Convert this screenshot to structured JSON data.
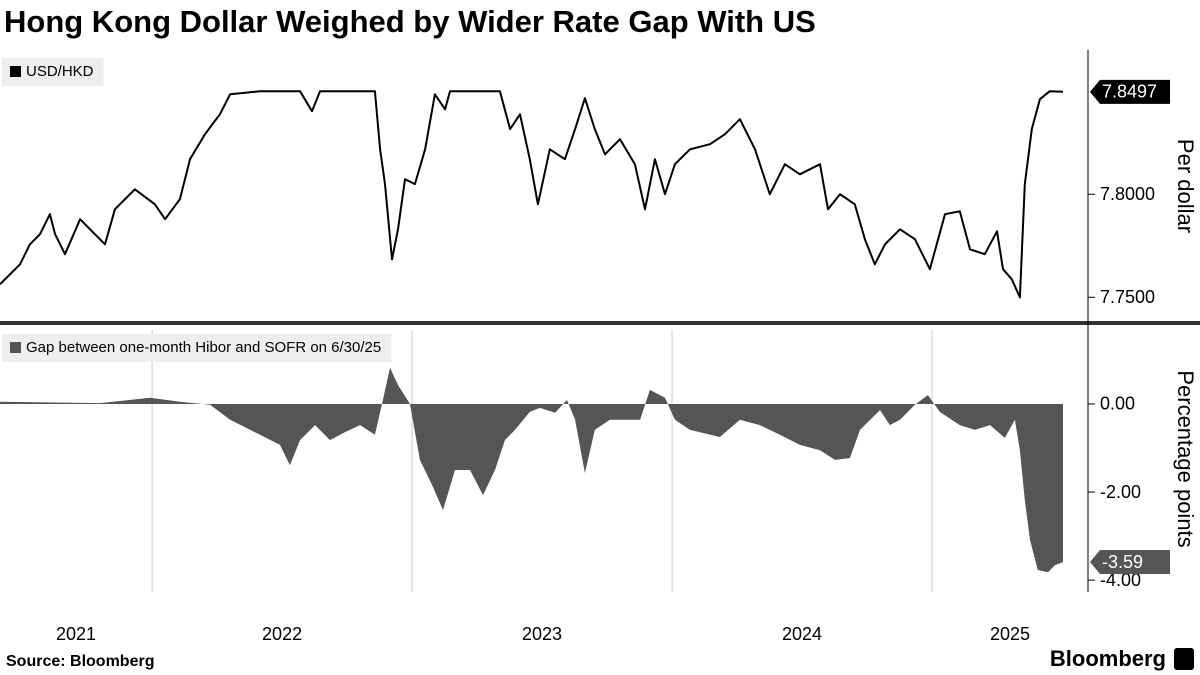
{
  "title": "Hong Kong Dollar Weighed by Wider Rate Gap With US",
  "source": "Source: Bloomberg",
  "brand": "Bloomberg",
  "chart_data": [
    {
      "type": "line",
      "ylabel": "Per dollar",
      "xlim": [
        2021.415,
        2025.6
      ],
      "ylim": [
        7.738,
        7.87
      ],
      "yticks": [
        {
          "value": 7.75,
          "label": "7.7500"
        },
        {
          "value": 7.8,
          "label": "7.8000"
        }
      ],
      "series": [
        {
          "name": "USD/HKD",
          "color": "#000000",
          "x": [
            2021.415,
            2021.492,
            2021.53,
            2021.569,
            2021.607,
            2021.627,
            2021.665,
            2021.723,
            2021.78,
            2021.819,
            2021.857,
            2021.934,
            2022.011,
            2022.05,
            2022.107,
            2022.146,
            2022.203,
            2022.261,
            2022.3,
            2022.415,
            2022.569,
            2022.615,
            2022.646,
            2022.857,
            2022.877,
            2022.896,
            2022.923,
            2022.946,
            2022.973,
            2023.011,
            2023.05,
            2023.088,
            2023.127,
            2023.146,
            2023.338,
            2023.377,
            2023.415,
            2023.453,
            2023.484,
            2023.53,
            2023.588,
            2023.627,
            2023.665,
            2023.703,
            2023.742,
            2023.8,
            2023.857,
            2023.896,
            2023.934,
            2023.973,
            2024.011,
            2024.069,
            2024.146,
            2024.203,
            2024.261,
            2024.319,
            2024.376,
            2024.434,
            2024.492,
            2024.569,
            2024.6,
            2024.646,
            2024.703,
            2024.742,
            2024.78,
            2024.819,
            2024.877,
            2024.934,
            2024.992,
            2025.05,
            2025.107,
            2025.146,
            2025.203,
            2025.25,
            2025.273,
            2025.307,
            2025.338,
            2025.357,
            2025.384,
            2025.415,
            2025.453,
            2025.504
          ],
          "values": [
            7.7563,
            7.766,
            7.7757,
            7.7806,
            7.7903,
            7.7806,
            7.7709,
            7.7879,
            7.7806,
            7.7757,
            7.7927,
            7.8024,
            7.7951,
            7.7879,
            7.7976,
            7.817,
            7.8291,
            7.8388,
            7.8485,
            7.85,
            7.85,
            7.8403,
            7.85,
            7.85,
            7.8218,
            7.8049,
            7.7684,
            7.783,
            7.8073,
            7.8049,
            7.8218,
            7.8485,
            7.8412,
            7.85,
            7.85,
            7.8316,
            7.8388,
            7.817,
            7.7951,
            7.8218,
            7.817,
            7.8316,
            7.8466,
            7.8316,
            7.8194,
            7.8267,
            7.8146,
            7.7927,
            7.817,
            7.8,
            7.8146,
            7.8218,
            7.8243,
            7.8291,
            7.8364,
            7.8218,
            7.8,
            7.8146,
            7.8097,
            7.8146,
            7.7927,
            7.8,
            7.7951,
            7.7782,
            7.766,
            7.7757,
            7.783,
            7.7782,
            7.7636,
            7.7903,
            7.7917,
            7.7733,
            7.7709,
            7.782,
            7.7636,
            7.7587,
            7.75,
            7.8049,
            7.8316,
            7.8461,
            7.85,
            7.8497
          ]
        }
      ]
    },
    {
      "type": "area",
      "ylabel": "Percentage points",
      "xlim": [
        2021.415,
        2025.6
      ],
      "xticks": [
        2022,
        2023,
        2024,
        2025
      ],
      "year_labels": [
        "2021",
        "2022",
        "2023",
        "2024",
        "2025"
      ],
      "ylim": [
        -4.27,
        1.77
      ],
      "yticks": [
        {
          "value": 0,
          "label": "0.00"
        },
        {
          "value": -2,
          "label": "-2.00"
        },
        {
          "value": -4,
          "label": "-4.00"
        }
      ],
      "series": [
        {
          "name": "Gap between one-month Hibor and SOFR on 6/30/25",
          "color": "#555555",
          "x": [
            2021.415,
            2021.8,
            2021.992,
            2022.107,
            2022.223,
            2022.3,
            2022.415,
            2022.492,
            2022.53,
            2022.569,
            2022.627,
            2022.684,
            2022.742,
            2022.8,
            2022.857,
            2022.888,
            2022.915,
            2022.946,
            2022.992,
            2023.03,
            2023.077,
            2023.119,
            2023.165,
            2023.223,
            2023.273,
            2023.319,
            2023.357,
            2023.396,
            2023.453,
            2023.492,
            2023.55,
            2023.596,
            2023.627,
            2023.665,
            2023.703,
            2023.761,
            2023.877,
            2023.915,
            2023.973,
            2024.011,
            2024.069,
            2024.184,
            2024.261,
            2024.338,
            2024.415,
            2024.492,
            2024.569,
            2024.627,
            2024.684,
            2024.723,
            2024.8,
            2024.838,
            2024.877,
            2024.934,
            2024.984,
            2025.03,
            2025.107,
            2025.165,
            2025.223,
            2025.28,
            2025.319,
            2025.338,
            2025.357,
            2025.377,
            2025.407,
            2025.446,
            2025.473,
            2025.504
          ],
          "values": [
            0.05,
            0.02,
            0.14,
            0.05,
            -0.02,
            -0.36,
            -0.7,
            -0.93,
            -1.39,
            -0.82,
            -0.48,
            -0.82,
            -0.64,
            -0.48,
            -0.7,
            0.09,
            0.82,
            0.43,
            0,
            -1.27,
            -1.84,
            -2.41,
            -1.5,
            -1.5,
            -2.07,
            -1.5,
            -0.82,
            -0.59,
            -0.18,
            -0.09,
            -0.2,
            0.09,
            -0.36,
            -1.57,
            -0.59,
            -0.36,
            -0.36,
            0.32,
            0.14,
            -0.36,
            -0.59,
            -0.75,
            -0.36,
            -0.48,
            -0.7,
            -0.93,
            -1.05,
            -1.27,
            -1.23,
            -0.59,
            -0.14,
            -0.48,
            -0.36,
            -0.02,
            0.2,
            -0.18,
            -0.48,
            -0.59,
            -0.48,
            -0.77,
            -0.36,
            -1.05,
            -2.18,
            -3.09,
            -3.77,
            -3.82,
            -3.66,
            -3.59
          ]
        }
      ]
    }
  ]
}
